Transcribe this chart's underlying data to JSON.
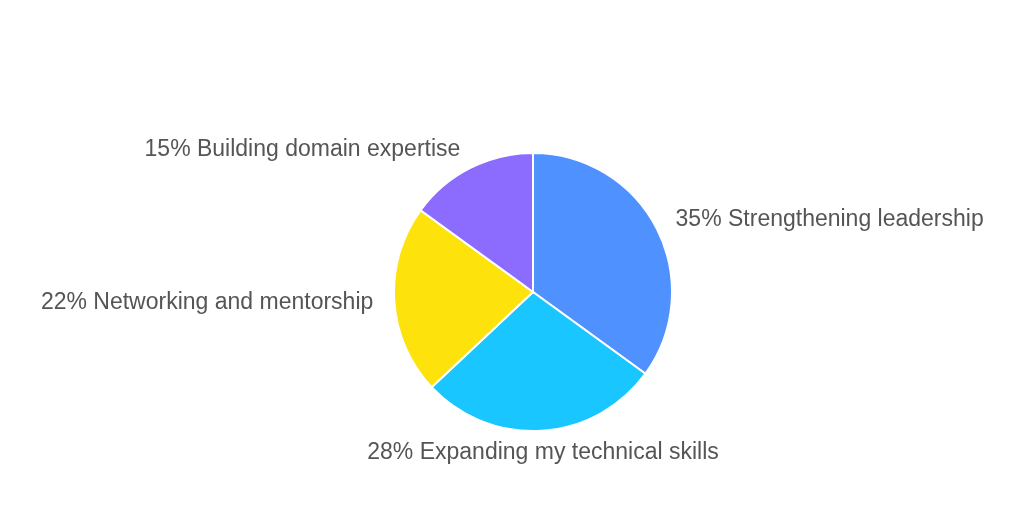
{
  "chart_data": {
    "type": "pie",
    "categories": [
      "Strengthening leadership",
      "Expanding my technical skills",
      "Networking and mentorship",
      "Building domain expertise"
    ],
    "values": [
      35,
      28,
      22,
      15
    ],
    "colors": [
      "#4f92ff",
      "#1ac6ff",
      "#fde20b",
      "#8c6cff"
    ],
    "value_labels": [
      "35%",
      "28%",
      "22%",
      "15%"
    ]
  }
}
